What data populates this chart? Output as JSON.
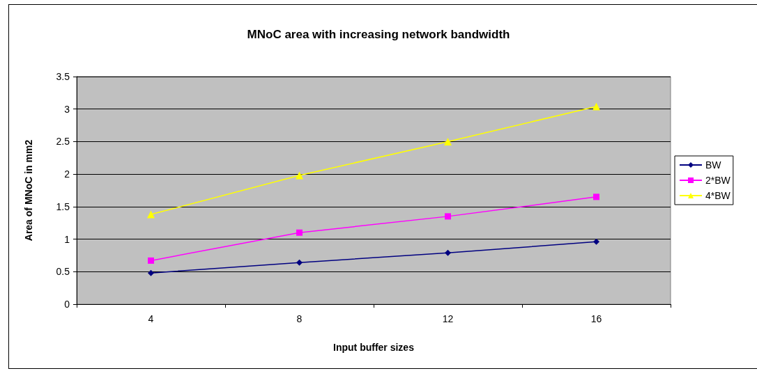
{
  "chart_data": {
    "type": "line",
    "title": "MNoC area with increasing network bandwidth",
    "xlabel": "Input buffer sizes",
    "ylabel": "Area of MNoC in mm2",
    "categories": [
      "4",
      "8",
      "12",
      "16"
    ],
    "series": [
      {
        "name": "BW",
        "color": "#000080",
        "marker": "diamond",
        "values": [
          0.48,
          0.64,
          0.79,
          0.96
        ]
      },
      {
        "name": "2*BW",
        "color": "#ff00ff",
        "marker": "square",
        "values": [
          0.67,
          1.1,
          1.35,
          1.65
        ]
      },
      {
        "name": "4*BW",
        "color": "#ffff00",
        "marker": "triangle",
        "values": [
          1.38,
          1.98,
          2.5,
          3.04
        ]
      }
    ],
    "ylim": [
      0,
      3.5
    ],
    "yticks": [
      0,
      0.5,
      1,
      1.5,
      2,
      2.5,
      3,
      3.5
    ],
    "grid": "y",
    "legend": "right"
  }
}
